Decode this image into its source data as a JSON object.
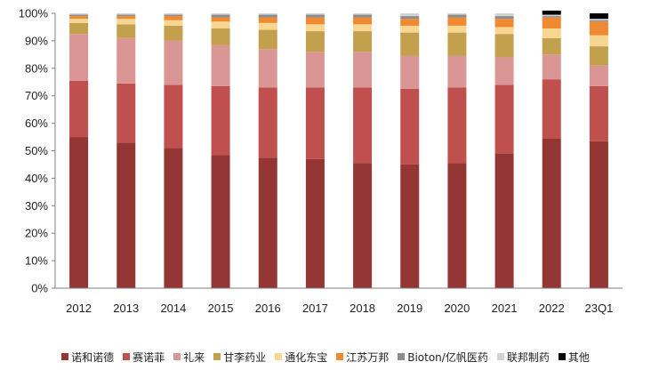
{
  "chart_data": {
    "type": "bar",
    "stacked": true,
    "percent": true,
    "categories": [
      "2012",
      "2013",
      "2014",
      "2015",
      "2016",
      "2017",
      "2018",
      "2019",
      "2020",
      "2021",
      "2022",
      "23Q1"
    ],
    "ylim": [
      0,
      100
    ],
    "yticks": [
      "0%",
      "10%",
      "20%",
      "30%",
      "40%",
      "50%",
      "60%",
      "70%",
      "80%",
      "90%",
      "100%"
    ],
    "grid": false,
    "legend_position": "bottom",
    "series": [
      {
        "name": "诺和诺德",
        "color": "#943634",
        "values": [
          55,
          53,
          51,
          48.5,
          47.5,
          47,
          45.5,
          45,
          45.5,
          49,
          54.5,
          53.5
        ]
      },
      {
        "name": "赛诺菲",
        "color": "#c0504d",
        "values": [
          20.5,
          21.5,
          23,
          25,
          25.5,
          26,
          27.5,
          27.5,
          27.5,
          25,
          21.5,
          20
        ]
      },
      {
        "name": "礼来",
        "color": "#d99694",
        "values": [
          17,
          16.5,
          16,
          15,
          14,
          13,
          13,
          12,
          11.5,
          10,
          9,
          7.5
        ]
      },
      {
        "name": "甘李药业",
        "color": "#c3a04e",
        "values": [
          4,
          5,
          5.5,
          6,
          7,
          7.5,
          7.5,
          8.5,
          8.5,
          8.5,
          6,
          7
        ]
      },
      {
        "name": "通化东宝",
        "color": "#f6d690",
        "values": [
          1.5,
          2,
          2,
          2.5,
          2.5,
          2.5,
          2.5,
          2.5,
          2.5,
          2.5,
          3.5,
          4
        ]
      },
      {
        "name": "江苏万邦",
        "color": "#f08a32",
        "values": [
          1,
          1,
          1.5,
          1.5,
          2,
          2.5,
          2.5,
          2.5,
          3,
          3,
          4,
          5
        ]
      },
      {
        "name": "Bioton/亿帆医药",
        "color": "#8c8c8c",
        "values": [
          0.5,
          0.5,
          0.5,
          1,
          1,
          1,
          1,
          1,
          1,
          1,
          0.5,
          0.5
        ]
      },
      {
        "name": "联邦制药",
        "color": "#d3d3d3",
        "values": [
          0.5,
          0.5,
          0.5,
          0.5,
          0.5,
          0.5,
          0.5,
          1,
          0.5,
          1,
          0.5,
          0.5
        ]
      },
      {
        "name": "其他",
        "color": "#000000",
        "values": [
          0,
          0,
          0,
          0,
          0,
          0,
          0,
          0,
          0,
          0,
          1.5,
          2
        ]
      }
    ]
  }
}
